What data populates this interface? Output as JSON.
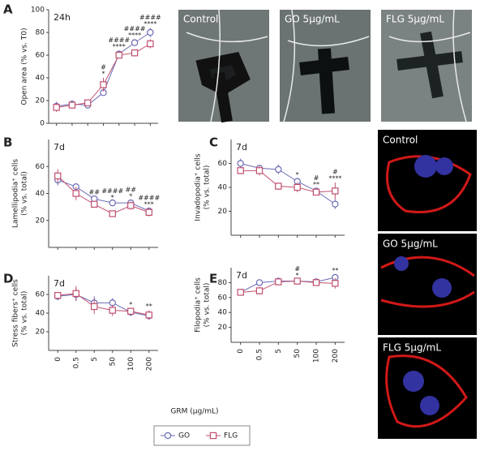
{
  "chart_data": [
    {
      "type": "line",
      "panel": "A",
      "label": "24h",
      "ylabel": [
        "Open area (% vs. T0)"
      ],
      "categories": [
        null,
        null,
        null,
        null,
        null,
        null,
        null
      ],
      "ylim": [
        0,
        100
      ],
      "yticks": [
        0,
        20,
        40,
        60,
        80,
        100
      ],
      "series": [
        {
          "name": "GO",
          "color": "#6b6bb5",
          "marker": "circle",
          "values": [
            15,
            17,
            16,
            27,
            61,
            71,
            80
          ],
          "errors": [
            4,
            3,
            3,
            2,
            3,
            3,
            4
          ]
        },
        {
          "name": "FLG",
          "color": "#c0506e",
          "marker": "square",
          "values": [
            14,
            16,
            18,
            34,
            60,
            62,
            70
          ],
          "errors": [
            4,
            3,
            3,
            6,
            3,
            3,
            4
          ]
        }
      ],
      "annotations": [
        null,
        null,
        null,
        [
          "#",
          "*"
        ],
        [
          "####",
          "****"
        ],
        [
          "####",
          "****"
        ],
        [
          "####",
          "****"
        ]
      ]
    },
    {
      "type": "line",
      "panel": "B",
      "label": "7d",
      "ylabel": [
        "Lamellipodia⁺ cells",
        "(% vs. total)"
      ],
      "categories": [
        null,
        null,
        null,
        null,
        null,
        null
      ],
      "ylim": [
        0,
        80
      ],
      "yticks": [
        20,
        40,
        60
      ],
      "series": [
        {
          "name": "GO",
          "color": "#6b6bb5",
          "marker": "circle",
          "values": [
            50,
            45,
            36,
            33,
            33,
            27
          ],
          "errors": [
            4,
            1,
            2,
            1,
            2,
            2
          ]
        },
        {
          "name": "FLG",
          "color": "#c0506e",
          "marker": "square",
          "values": [
            53,
            40,
            32,
            25,
            31,
            26
          ],
          "errors": [
            5,
            5,
            2,
            1,
            3,
            3
          ]
        }
      ],
      "annotations": [
        null,
        null,
        [
          "##"
        ],
        [
          "####",
          "*"
        ],
        [
          "##",
          "*"
        ],
        [
          "####",
          "***"
        ]
      ]
    },
    {
      "type": "line",
      "panel": "C",
      "label": "7d",
      "ylabel": [
        "Invadopodia⁺ cells",
        "(% vs. total)"
      ],
      "categories": [
        null,
        null,
        null,
        null,
        null,
        null
      ],
      "ylim": [
        0,
        80
      ],
      "yticks": [
        20,
        40,
        60
      ],
      "series": [
        {
          "name": "GO",
          "color": "#6b6bb5",
          "marker": "circle",
          "values": [
            60,
            56,
            55,
            45,
            37,
            26
          ],
          "errors": [
            4,
            2,
            4,
            2,
            2,
            4
          ]
        },
        {
          "name": "FLG",
          "color": "#c0506e",
          "marker": "square",
          "values": [
            54,
            54,
            41,
            40,
            36,
            37
          ],
          "errors": [
            3,
            4,
            3,
            4,
            2,
            7
          ]
        }
      ],
      "annotations": [
        null,
        null,
        null,
        [
          "*"
        ],
        [
          "#",
          "**"
        ],
        [
          "#",
          "****"
        ]
      ]
    },
    {
      "type": "line",
      "panel": "D",
      "label": "7d",
      "ylabel": [
        "Stress fibers⁺ cells",
        "(% vs. total)"
      ],
      "xlabel": "GRM (μg/mL)",
      "categories": [
        "0",
        "0.5",
        "5",
        "50",
        "100",
        "200"
      ],
      "ylim": [
        0,
        80
      ],
      "yticks": [
        20,
        40,
        60
      ],
      "series": [
        {
          "name": "GO",
          "color": "#6b6bb5",
          "marker": "circle",
          "values": [
            58,
            60,
            51,
            51,
            41,
            37
          ],
          "errors": [
            4,
            7,
            7,
            5,
            4,
            4
          ]
        },
        {
          "name": "FLG",
          "color": "#c0506e",
          "marker": "square",
          "values": [
            59,
            61,
            47,
            43,
            42,
            38
          ],
          "errors": [
            3,
            8,
            8,
            6,
            3,
            5
          ]
        }
      ],
      "annotations": [
        null,
        null,
        null,
        null,
        [
          "*"
        ],
        [
          "**"
        ]
      ]
    },
    {
      "type": "line",
      "panel": "E",
      "label": "7d",
      "ylabel": [
        "Filopodia⁺ cells",
        "(% vs. total)"
      ],
      "categories": [
        "0",
        "0.5",
        "5",
        "50",
        "100",
        "200"
      ],
      "ylim": [
        0,
        100
      ],
      "yticks": [
        20,
        40,
        60,
        80
      ],
      "series": [
        {
          "name": "GO",
          "color": "#6b6bb5",
          "marker": "circle",
          "values": [
            67,
            80,
            82,
            82,
            81,
            87
          ],
          "errors": [
            4,
            1,
            2,
            2,
            3,
            4
          ]
        },
        {
          "name": "FLG",
          "color": "#c0506e",
          "marker": "square",
          "values": [
            67,
            69,
            81,
            82,
            80,
            79
          ],
          "errors": [
            4,
            5,
            2,
            2,
            4,
            7
          ]
        }
      ],
      "annotations": [
        null,
        null,
        null,
        [
          "#",
          "*"
        ],
        null,
        [
          "**"
        ]
      ]
    }
  ],
  "images": {
    "wound_labels": [
      "Control",
      "GO 5μg/mL",
      "FLG 5μg/mL"
    ],
    "confocal_labels": [
      "Control",
      "GO 5μg/mL",
      "FLG 5μg/mL"
    ]
  }
}
